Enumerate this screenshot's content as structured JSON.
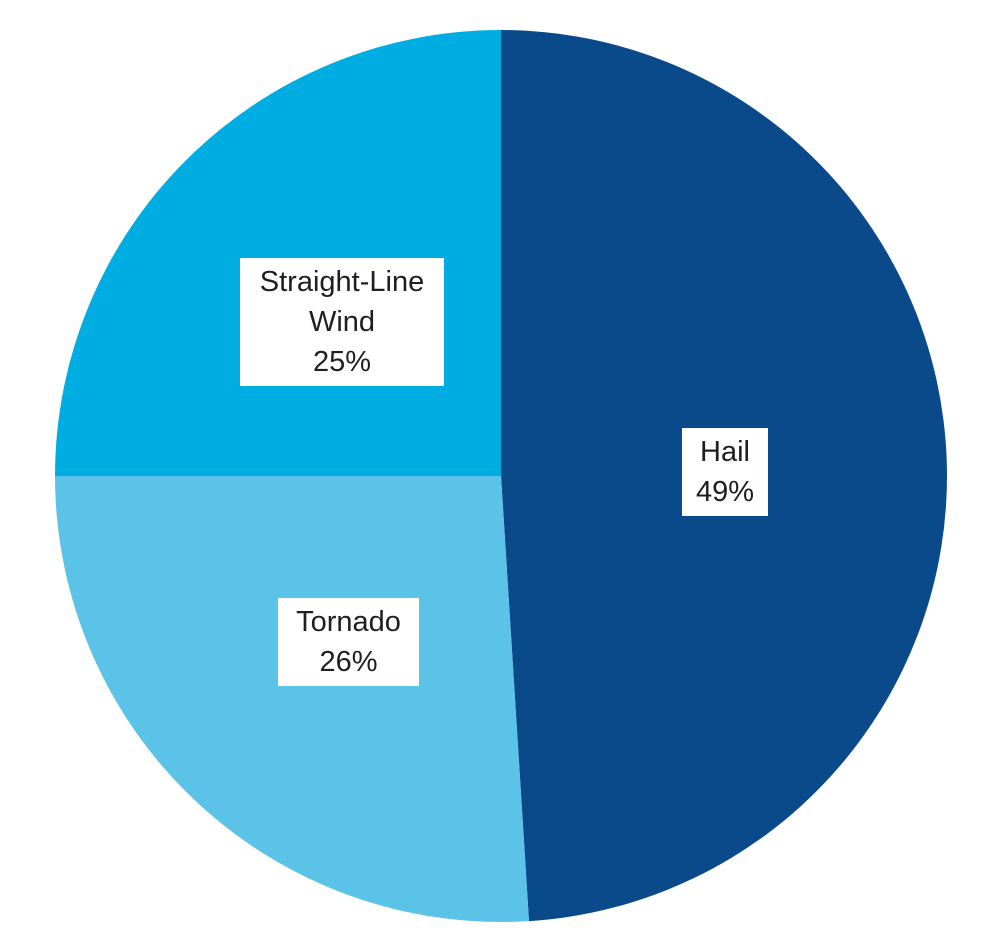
{
  "chart_data": {
    "type": "pie",
    "title": "",
    "start_angle_deg": 0,
    "direction": "clockwise",
    "legend": "none",
    "slices": [
      {
        "label": "Hail",
        "value": 49,
        "percent_label": "49%",
        "color": "#0a4a8a"
      },
      {
        "label": "Tornado",
        "value": 26,
        "percent_label": "26%",
        "color": "#5cc3e8"
      },
      {
        "label": "Straight-Line Wind",
        "value": 25,
        "percent_label": "25%",
        "color": "#00ade3"
      }
    ],
    "label_style": {
      "background": "#ffffff",
      "text_color": "#1f1f1f"
    }
  }
}
